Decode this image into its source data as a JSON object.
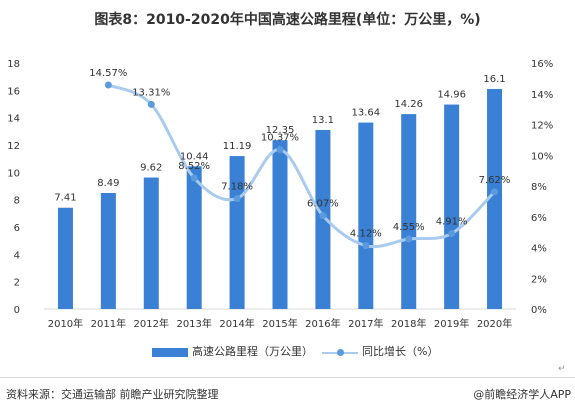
{
  "title": "图表8：2010-2020年中国高速公路里程(单位：万公里，%)",
  "source": "资料来源：交通运输部 前瞻产业研究院整理",
  "brand": "@前瞻经济学人APP",
  "return_glyph": "↵",
  "colors": {
    "bar": "#3a80d5",
    "line": "#a9cbef",
    "marker": "#5b9bdd",
    "axis": "#d9d9d9"
  },
  "chart_data": {
    "type": "bar",
    "categories": [
      "2010年",
      "2011年",
      "2012年",
      "2013年",
      "2014年",
      "2015年",
      "2016年",
      "2017年",
      "2018年",
      "2019年",
      "2020年"
    ],
    "series": [
      {
        "name": "高速公路里程（万公里）",
        "type": "bar",
        "axis": "left",
        "values": [
          7.41,
          8.49,
          9.62,
          10.44,
          11.19,
          12.35,
          13.1,
          13.64,
          14.26,
          14.96,
          16.1
        ],
        "labels": [
          "7.41",
          "8.49",
          "9.62",
          "10.44",
          "11.19",
          "12.35",
          "13.1",
          "13.64",
          "14.26",
          "14.96",
          "16.1"
        ]
      },
      {
        "name": "同比增长（%）",
        "type": "line",
        "axis": "right",
        "values": [
          null,
          14.57,
          13.31,
          8.52,
          7.18,
          10.37,
          6.07,
          4.12,
          4.55,
          4.91,
          7.62
        ],
        "labels": [
          "",
          "14.57%",
          "13.31%",
          "8.52%",
          "7.18%",
          "10.37%",
          "6.07%",
          "4.12%",
          "4.55%",
          "4.91%",
          "7.62%"
        ]
      }
    ],
    "y_left": {
      "range": [
        0,
        18
      ],
      "ticks": [
        "0",
        "2",
        "4",
        "6",
        "8",
        "10",
        "12",
        "14",
        "16",
        "18"
      ]
    },
    "y_right": {
      "range": [
        0,
        16
      ],
      "ticks": [
        "0%",
        "2%",
        "4%",
        "6%",
        "8%",
        "10%",
        "12%",
        "14%",
        "16%"
      ]
    },
    "grid": false,
    "legend_position": "bottom"
  }
}
